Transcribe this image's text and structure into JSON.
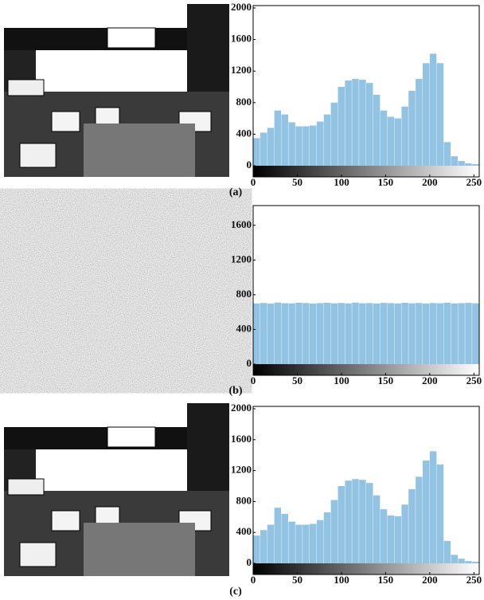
{
  "chart_data": [
    {
      "type": "histogram",
      "caption": "(a)",
      "color": "#93c3e3",
      "bins": [
        0,
        8,
        16,
        24,
        32,
        40,
        48,
        56,
        64,
        72,
        80,
        88,
        96,
        104,
        112,
        120,
        128,
        136,
        144,
        152,
        160,
        168,
        176,
        184,
        192,
        200,
        208,
        216,
        224,
        232,
        240,
        248,
        256
      ],
      "values": [
        350,
        420,
        480,
        700,
        650,
        550,
        500,
        500,
        510,
        560,
        650,
        800,
        1000,
        1080,
        1100,
        1090,
        1050,
        900,
        700,
        620,
        600,
        750,
        950,
        1100,
        1300,
        1420,
        1300,
        300,
        120,
        60,
        30,
        20
      ],
      "xlim": [
        0,
        256
      ],
      "xticks": [
        0,
        50,
        100,
        150,
        200,
        250
      ],
      "ylim": [
        0,
        2000
      ],
      "yticks": [
        0,
        400,
        800,
        1200,
        1600,
        2000
      ]
    },
    {
      "type": "histogram",
      "caption": "(b)",
      "color": "#93c3e3",
      "bins": [
        0,
        8,
        16,
        24,
        32,
        40,
        48,
        56,
        64,
        72,
        80,
        88,
        96,
        104,
        112,
        120,
        128,
        136,
        144,
        152,
        160,
        168,
        176,
        184,
        192,
        200,
        208,
        216,
        224,
        232,
        240,
        248,
        256
      ],
      "values": [
        700,
        705,
        698,
        710,
        702,
        700,
        708,
        704,
        699,
        703,
        707,
        701,
        705,
        700,
        709,
        702,
        704,
        698,
        706,
        703,
        700,
        707,
        701,
        705,
        699,
        704,
        702,
        708,
        700,
        703,
        706,
        701
      ],
      "xlim": [
        0,
        256
      ],
      "xticks": [
        0,
        50,
        100,
        150,
        200,
        250
      ],
      "ylim": [
        0,
        1800
      ],
      "yticks": [
        0,
        400,
        800,
        1200,
        1600
      ]
    },
    {
      "type": "histogram",
      "caption": "(c)",
      "color": "#93c3e3",
      "bins": [
        0,
        8,
        16,
        24,
        32,
        40,
        48,
        56,
        64,
        72,
        80,
        88,
        96,
        104,
        112,
        120,
        128,
        136,
        144,
        152,
        160,
        168,
        176,
        184,
        192,
        200,
        208,
        216,
        224,
        232,
        240,
        248,
        256
      ],
      "values": [
        360,
        430,
        500,
        720,
        640,
        540,
        500,
        500,
        510,
        560,
        660,
        820,
        1000,
        1070,
        1090,
        1080,
        1040,
        880,
        700,
        620,
        610,
        760,
        960,
        1120,
        1330,
        1450,
        1280,
        290,
        110,
        60,
        30,
        20
      ],
      "xlim": [
        0,
        256
      ],
      "xticks": [
        0,
        50,
        100,
        150,
        200,
        250
      ],
      "ylim": [
        0,
        2000
      ],
      "yticks": [
        0,
        400,
        800,
        1200,
        1600,
        2000
      ]
    }
  ]
}
